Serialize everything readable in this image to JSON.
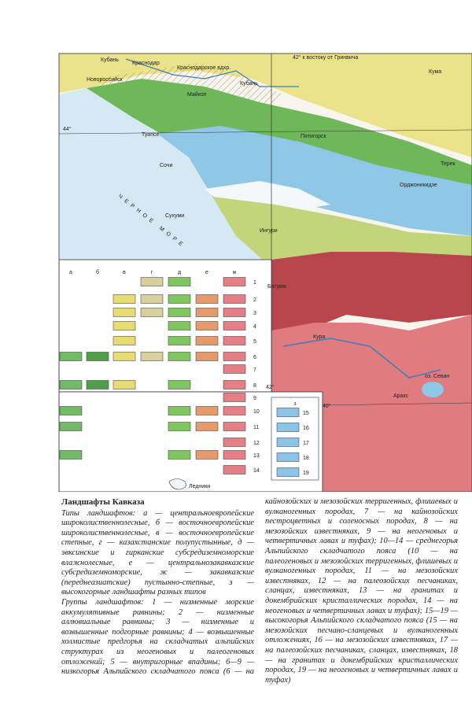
{
  "map": {
    "labels": [
      "Кубань",
      "Краснодар",
      "Краснодарское вдхр.",
      "Новороссийск",
      "Майкоп",
      "42° к востоку от Гринвича",
      "Кума",
      "Кубань",
      "44°",
      "Туапсе",
      "Сочи",
      "Пятигорск",
      "Терек",
      "ЧЕРНОЕ МОРЕ",
      "Сухуми",
      "Орджоникидзе",
      "Ингури",
      "Батуми",
      "Кура",
      "42°",
      "Аракс",
      "оз. Севан",
      "40°"
    ]
  },
  "legend": {
    "columns": [
      "а",
      "б",
      "в",
      "г",
      "д",
      "е",
      "ж"
    ],
    "rows": [
      "1",
      "2",
      "3",
      "4",
      "5",
      "6",
      "7",
      "8",
      "9",
      "10",
      "11",
      "12",
      "13",
      "14"
    ],
    "high_column": "з",
    "high_rows": [
      "15",
      "16",
      "17",
      "18",
      "19"
    ],
    "glaciers": "Ледники"
  },
  "caption": {
    "title": "Ландшафты Кавказа",
    "types": "Типы ландшафтов: а — центральноевропейские широколиственнолесные, б — восточноевропейские широколиственнолесные, в — восточноевропейские степные, г — казахстанские полупустынные, д — эвксинские и гирканские субсредиземноморские влажнолесные, е — центральнозакавказские субсредиземноморские, ж — закавказские (переднеазиатские) пустынно-степные, з — высокогорные ландшафты разных типов",
    "groups": "Группы ландшафтов: 1 — низменные морские аккумулятивные равнины; 2 — низменные аллювиальные равнины; 3 — низменные и возвышенные подгорные равнины; 4 — возвышенные холмистые предгорья на складчатых альпийских структурах из неогеновых и палеогеновых отложений; 5 — внутригорные впадины; 6—9 — низкогорья Альпийского складчатого пояса (6 — на кайнозойских и мезозойских терригенных, флишевых и вулканогенных породах, 7 — на кайнозойских пестроцветных и соленосных породах, 8 — на мезозойских известняках, 9 — на неогеновых и четвертичных лавах и туфах); 10—14 — среднегорья Альпийского складчатого пояса (10 — на палеогеновых и мезозойских терригенных, флишевых и вулканогенных породах, 11 — на мезозойских известняках, 12 — на палеозойских песчаниках, сланцах, известняках, 13 — на гранитах и докембрийских кристаллических породах, 14 — на неогеновых и четвертичных лавах и туфах); 15—19 — высокогорья Альпийского складчатого пояса (15 — на мезозойских песчано-сланцевых и вулканогенных отложениях, 16 — на мезозойских известняках, 17 — на палеозойских песчаниках, сланцах, известняках, 18 — на гранитах и докембрийских кристаллических породах, 19 — на неогеновых и четвертичных лавах и туфах)"
  }
}
